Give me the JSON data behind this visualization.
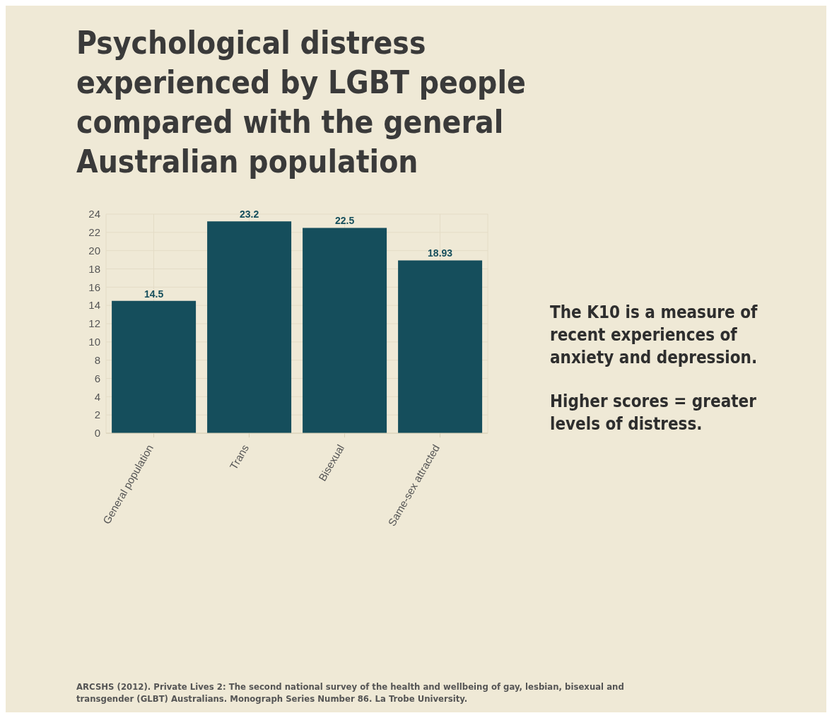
{
  "chart_data": {
    "type": "bar",
    "title": "Psychological distress experienced by LGBT people compared with the general Australian population",
    "categories": [
      "General population",
      "Trans",
      "Bisexual",
      "Same-sex attracted"
    ],
    "values": [
      14.5,
      23.2,
      22.5,
      18.93
    ],
    "color": "#154e5c",
    "ylim": [
      0,
      24
    ],
    "yticks": [
      0,
      2,
      4,
      6,
      8,
      10,
      12,
      14,
      16,
      18,
      20,
      22,
      24
    ],
    "grid": true,
    "data_labels": true,
    "annotations": [
      "The K10 is a measure of recent experiences of anxiety and depression.",
      "Higher scores = greater levels of distress.",
      "ARCSHS (2012). Private Lives 2: The second national survey of the health and wellbeing of gay, lesbian, bisexual and transgender (GLBT) Australians. Monograph Series Number 86. La Trobe University."
    ]
  }
}
